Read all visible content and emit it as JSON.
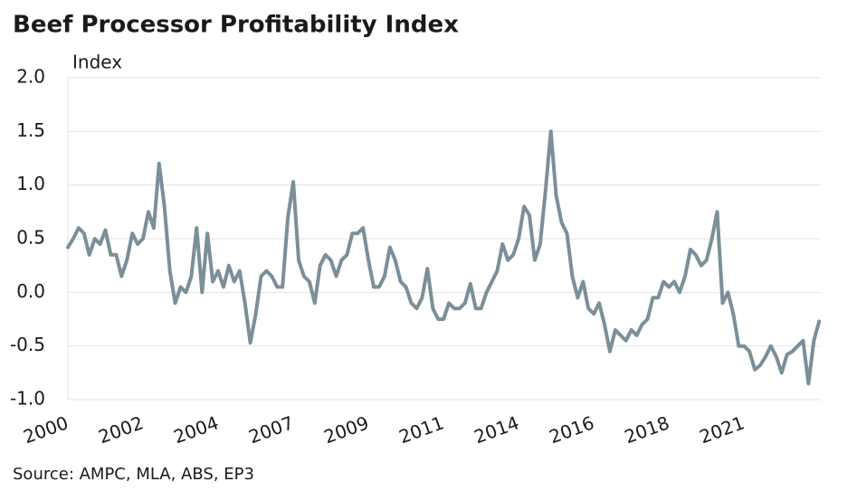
{
  "chart_data": {
    "type": "line",
    "title": "Beef Processor Profitability Index",
    "y_label": "Index",
    "source": "Source: AMPC, MLA, ABS, EP3",
    "categories": [
      "2000",
      null,
      null,
      null,
      null,
      null,
      null,
      null,
      null,
      null,
      null,
      null,
      null,
      null,
      "2002",
      null,
      null,
      null,
      null,
      null,
      null,
      null,
      null,
      null,
      null,
      null,
      null,
      null,
      "2004",
      null,
      null,
      null,
      null,
      null,
      null,
      null,
      null,
      null,
      null,
      null,
      null,
      null,
      "2007",
      null,
      null,
      null,
      null,
      null,
      null,
      null,
      null,
      null,
      null,
      null,
      null,
      null,
      "2009",
      null,
      null,
      null,
      null,
      null,
      null,
      null,
      null,
      null,
      null,
      null,
      null,
      null,
      "2011",
      null,
      null,
      null,
      null,
      null,
      null,
      null,
      null,
      null,
      null,
      null,
      null,
      null,
      "2014",
      null,
      null,
      null,
      null,
      null,
      null,
      null,
      null,
      null,
      null,
      null,
      null,
      null,
      "2016",
      null,
      null,
      null,
      null,
      null,
      null,
      null,
      null,
      null,
      null,
      null,
      null,
      null,
      "2018",
      null,
      null,
      null,
      null,
      null,
      null,
      null,
      null,
      null,
      null,
      null,
      null,
      null,
      "2021",
      null,
      null,
      null,
      null,
      null,
      null,
      null,
      null,
      null,
      null,
      null,
      null,
      null,
      null
    ],
    "series": [
      {
        "name": "Index",
        "color": "#7b8f99",
        "values": [
          0.42,
          0.5,
          0.6,
          0.55,
          0.35,
          0.5,
          0.45,
          0.58,
          0.35,
          0.35,
          0.15,
          0.3,
          0.55,
          0.45,
          0.5,
          0.75,
          0.6,
          1.2,
          0.8,
          0.2,
          -0.1,
          0.05,
          0.0,
          0.15,
          0.6,
          0.0,
          0.55,
          0.1,
          0.2,
          0.05,
          0.25,
          0.1,
          0.2,
          -0.1,
          -0.47,
          -0.2,
          0.15,
          0.2,
          0.15,
          0.05,
          0.05,
          0.7,
          1.03,
          0.3,
          0.15,
          0.1,
          -0.1,
          0.25,
          0.35,
          0.3,
          0.15,
          0.3,
          0.35,
          0.55,
          0.55,
          0.6,
          0.3,
          0.05,
          0.05,
          0.15,
          0.42,
          0.3,
          0.1,
          0.05,
          -0.1,
          -0.15,
          -0.05,
          0.22,
          -0.15,
          -0.25,
          -0.25,
          -0.1,
          -0.15,
          -0.15,
          -0.1,
          0.08,
          -0.15,
          -0.15,
          0.0,
          0.1,
          0.2,
          0.45,
          0.3,
          0.35,
          0.5,
          0.8,
          0.72,
          0.3,
          0.45,
          0.95,
          1.5,
          0.9,
          0.65,
          0.55,
          0.15,
          -0.05,
          0.1,
          -0.15,
          -0.2,
          -0.1,
          -0.3,
          -0.55,
          -0.35,
          -0.4,
          -0.45,
          -0.35,
          -0.4,
          -0.3,
          -0.25,
          -0.05,
          -0.05,
          0.1,
          0.05,
          0.1,
          0.0,
          0.15,
          0.4,
          0.35,
          0.25,
          0.3,
          0.5,
          0.75,
          -0.1,
          0.0,
          -0.2,
          -0.5,
          -0.5,
          -0.55,
          -0.72,
          -0.68,
          -0.6,
          -0.5,
          -0.6,
          -0.75,
          -0.58,
          -0.55,
          -0.5,
          -0.45,
          -0.85,
          -0.45,
          -0.27
        ]
      }
    ],
    "ylim": [
      -1,
      2
    ],
    "yticks": [
      {
        "value": -1,
        "label": "-1.0"
      },
      {
        "value": -0.5,
        "label": "-0.5"
      },
      {
        "value": 0,
        "label": "0.0"
      },
      {
        "value": 0.5,
        "label": "0.5"
      },
      {
        "value": 1,
        "label": "1.0"
      },
      {
        "value": 1.5,
        "label": "1.5"
      },
      {
        "value": 2,
        "label": "2.0"
      }
    ],
    "grid": true
  }
}
